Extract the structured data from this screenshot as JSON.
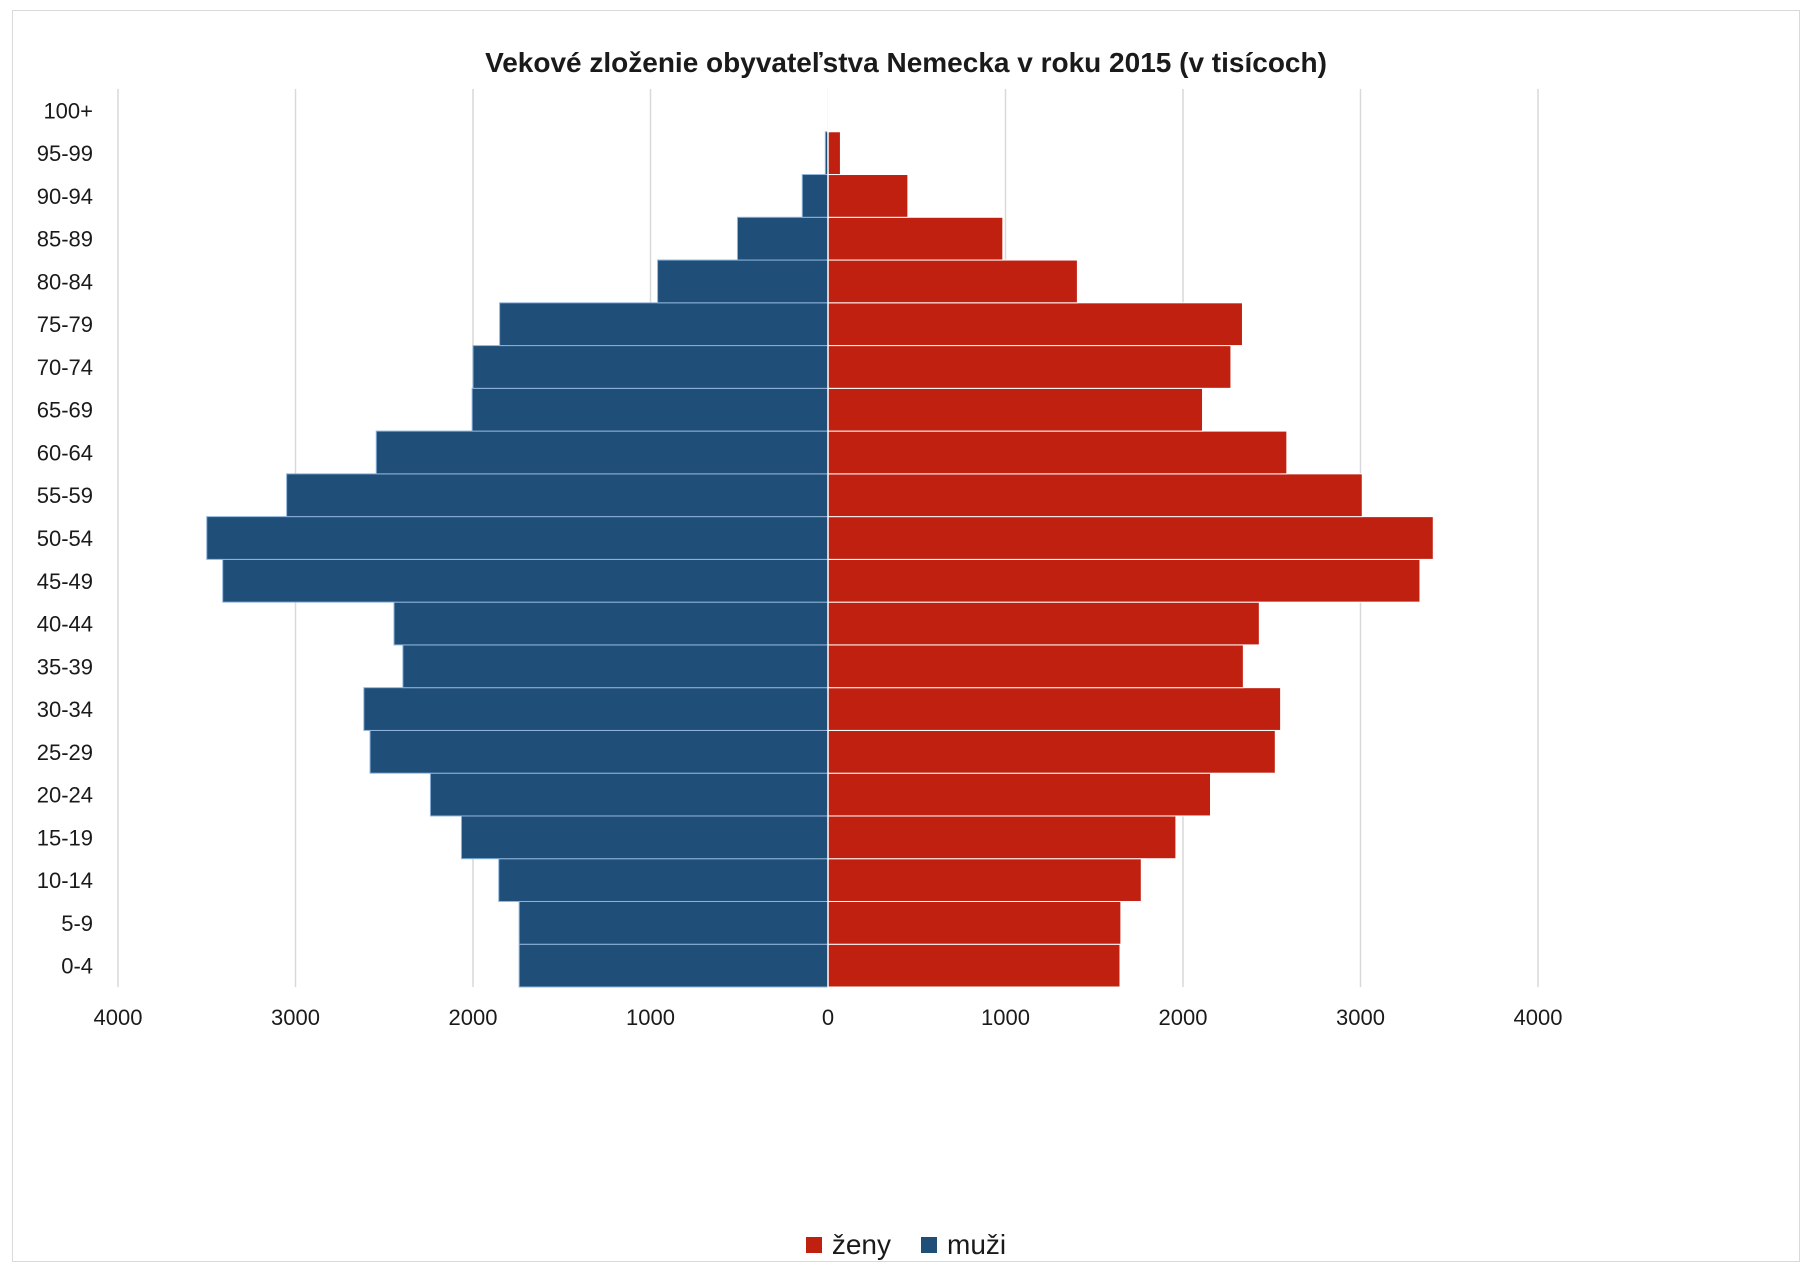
{
  "chart_data": {
    "type": "bar",
    "orientation": "horizontal",
    "title": "Vekové zloženie obyvateľstva Nemecka v roku 2015 (v tisícoch)",
    "categories": [
      "0-4",
      "5-9",
      "10-14",
      "15-19",
      "20-24",
      "25-29",
      "30-34",
      "35-39",
      "40-44",
      "45-49",
      "50-54",
      "55-59",
      "60-64",
      "65-69",
      "70-74",
      "75-79",
      "80-84",
      "85-89",
      "90-94",
      "95-99",
      "100+"
    ],
    "series": [
      {
        "name": "muži",
        "color": "#1f4e79",
        "values": [
          1740,
          1740,
          1855,
          2065,
          2240,
          2580,
          2615,
          2395,
          2445,
          3410,
          3500,
          3050,
          2545,
          2005,
          2000,
          1850,
          960,
          510,
          145,
          15,
          1
        ]
      },
      {
        "name": "ženy",
        "color": "#c0200f",
        "values": [
          1645,
          1650,
          1765,
          1960,
          2155,
          2520,
          2550,
          2340,
          2430,
          3335,
          3410,
          3010,
          2585,
          2110,
          2270,
          2335,
          1405,
          985,
          450,
          70,
          5
        ]
      }
    ],
    "legend_order": [
      "ženy",
      "muži"
    ],
    "xlim": [
      -4000,
      4000
    ],
    "xticks": [
      -4000,
      -3000,
      -2000,
      -1000,
      0,
      1000,
      2000,
      3000,
      4000
    ],
    "xtick_labels": [
      "4000",
      "3000",
      "2000",
      "1000",
      "0",
      "1000",
      "2000",
      "3000",
      "4000"
    ],
    "grid": true,
    "legend_position": "bottom"
  }
}
